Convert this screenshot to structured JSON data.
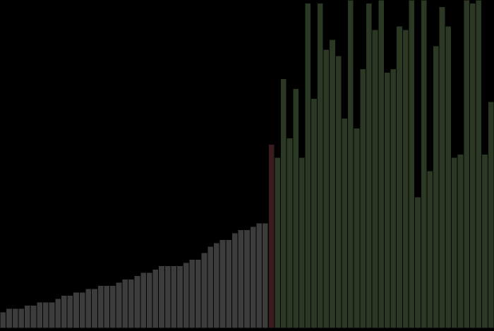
{
  "chart_data": {
    "type": "bar",
    "title": "",
    "xlabel": "",
    "ylabel": "",
    "ylim": [
      0,
      100
    ],
    "grid": false,
    "legend": "none",
    "colors": {
      "background": "#000000",
      "sorted": "#3c3c3c",
      "pivot": "#3a1c1e",
      "unsorted": "#2b3823",
      "edge": "#000000"
    },
    "series": [
      {
        "role": "sorted",
        "values": [
          5,
          6,
          6,
          6,
          7,
          7,
          8,
          8,
          8,
          9,
          10,
          10,
          11,
          11,
          12,
          12,
          13,
          13,
          13,
          14,
          15,
          15,
          16,
          17,
          17,
          18,
          19,
          19,
          19,
          19,
          20,
          21,
          21,
          23,
          25,
          26,
          27,
          27,
          29,
          30,
          30,
          31,
          32,
          32
        ]
      },
      {
        "role": "pivot",
        "values": [
          56
        ]
      },
      {
        "role": "unsorted",
        "values": [
          52,
          76,
          58,
          73,
          52,
          99,
          70,
          99,
          85,
          88,
          83,
          64,
          100,
          61,
          79,
          99,
          91,
          100,
          78,
          79,
          92,
          91,
          100,
          40,
          100,
          48,
          86,
          98,
          92,
          52,
          53,
          100,
          99,
          100,
          53,
          69
        ]
      }
    ]
  }
}
